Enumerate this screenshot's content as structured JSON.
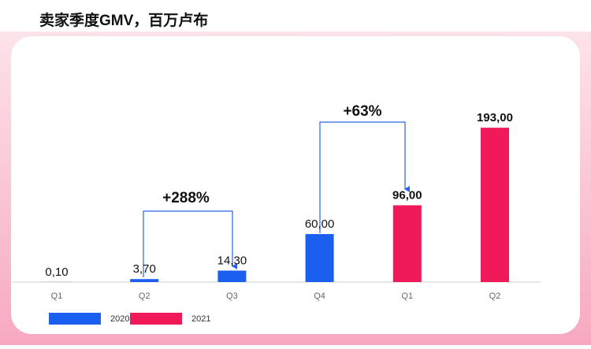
{
  "chart_data": {
    "type": "bar",
    "title": "卖家季度GMV，百万卢布",
    "categories": [
      "Q1",
      "Q2",
      "Q3",
      "Q4",
      "Q1",
      "Q2"
    ],
    "series": [
      {
        "name": "2020",
        "color": "#1a5ff0",
        "values": [
          0.1,
          3.7,
          14.3,
          60,
          null,
          null
        ],
        "value_labels": [
          "0,10",
          "3,70",
          "14,30",
          "60,00",
          null,
          null
        ]
      },
      {
        "name": "2021",
        "color": "#f0195a",
        "values": [
          null,
          null,
          null,
          null,
          96,
          193
        ],
        "value_labels": [
          null,
          null,
          null,
          null,
          "96,00",
          "193,00"
        ]
      }
    ],
    "ylim": [
      0,
      200
    ],
    "annotations": [
      "+288%",
      "+63%"
    ]
  }
}
